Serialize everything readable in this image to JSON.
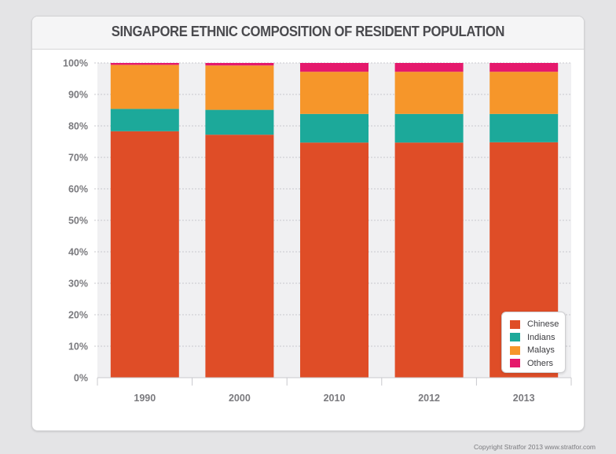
{
  "chart_data": {
    "type": "bar",
    "stacked": true,
    "title": "SINGAPORE ETHNIC COMPOSITION OF RESIDENT POPULATION",
    "categories": [
      "1990",
      "2000",
      "2010",
      "2012",
      "2013"
    ],
    "yticks": [
      "0%",
      "10%",
      "20%",
      "30%",
      "40%",
      "50%",
      "60%",
      "70%",
      "80%",
      "90%",
      "100%"
    ],
    "ylim": [
      0,
      100
    ],
    "grid": true,
    "legend_position": "bottom-right",
    "series": [
      {
        "name": "Chinese",
        "color": "#df4d27",
        "values": [
          78.3,
          77.2,
          74.7,
          74.7,
          74.8
        ]
      },
      {
        "name": "Indians",
        "color": "#1ca99a",
        "values": [
          7.1,
          7.9,
          9.1,
          9.1,
          9.0
        ]
      },
      {
        "name": "Malays",
        "color": "#f6962a",
        "values": [
          14.0,
          14.1,
          13.4,
          13.4,
          13.4
        ]
      },
      {
        "name": "Others",
        "color": "#e5196c",
        "values": [
          0.6,
          0.8,
          2.8,
          2.8,
          2.8
        ]
      }
    ]
  },
  "footer": {
    "copyright": "Copyright Stratfor 2013    www.stratfor.com"
  }
}
